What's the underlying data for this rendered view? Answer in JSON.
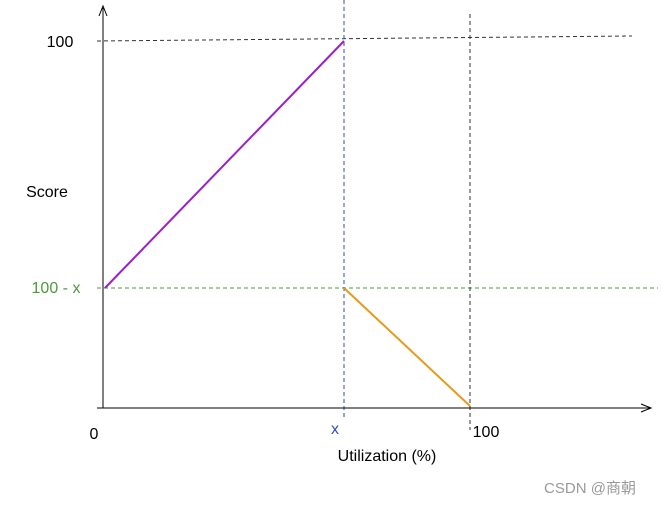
{
  "y_axis": {
    "title": "Score",
    "labels": [
      "100",
      "100 - x"
    ]
  },
  "x_axis": {
    "title": "Utilization (%)",
    "labels": [
      "0",
      "x",
      "100"
    ]
  },
  "watermark": "CSDN @商朝"
}
